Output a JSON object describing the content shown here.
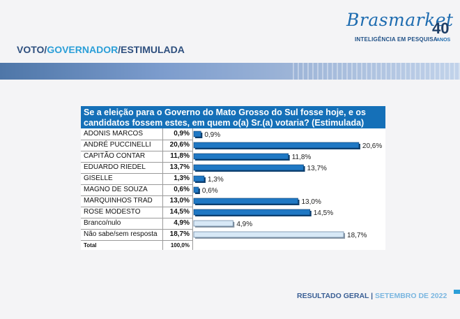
{
  "brand": {
    "script": "Brasmarket",
    "subtitle": "INTELIGÊNCIA EM PESQUISA",
    "years": "40",
    "years_label": "ANOS"
  },
  "title": {
    "part1": "VOTO/",
    "part2": "GOVERNADOR",
    "part3": "/ESTIMULADA"
  },
  "footer": {
    "left": "RESULTADO GERAL",
    "sep": " | ",
    "right": "SETEMBRO DE 2022"
  },
  "colors": {
    "header_bg": "#1570b8",
    "bar_dark": "#1f78c4",
    "bar_light": "#d7e8f6",
    "title_dark": "#2e4f7e",
    "title_accent": "#2b9fd8"
  },
  "chart_data": {
    "type": "bar",
    "title": "Se a eleição para o Governo do Mato Grosso do Sul fosse hoje, e os candidatos fossem estes, em quem o(a) Sr.(a) votaria? (Estimulada)",
    "title_line1": "Se a eleição para o Governo do Mato Grosso do Sul fosse hoje, e os",
    "title_line2": "candidatos fossem estes, em quem o(a) Sr.(a) votaria? (Estimulada)",
    "categories": [
      "ADONIS MARCOS",
      "ANDRÉ PUCCINELLI",
      "CAPITÃO CONTAR",
      "EDUARDO RIEDEL",
      "GISELLE",
      "MAGNO DE SOUZA",
      "MARQUINHOS TRAD",
      "ROSE MODESTO",
      "Branco/nulo",
      "Não sabe/sem resposta"
    ],
    "values": [
      0.9,
      20.6,
      11.8,
      13.7,
      1.3,
      0.6,
      13.0,
      14.5,
      4.9,
      18.7
    ],
    "value_labels": [
      "0,9%",
      "20,6%",
      "11,8%",
      "13,7%",
      "1,3%",
      "0,6%",
      "13,0%",
      "14,5%",
      "4,9%",
      "18,7%"
    ],
    "bar_style": [
      "dark",
      "dark",
      "dark",
      "dark",
      "dark",
      "dark",
      "dark",
      "dark",
      "light",
      "light"
    ],
    "total_label": "Total",
    "total_value": "100,0%",
    "xlim": [
      0,
      24
    ]
  }
}
